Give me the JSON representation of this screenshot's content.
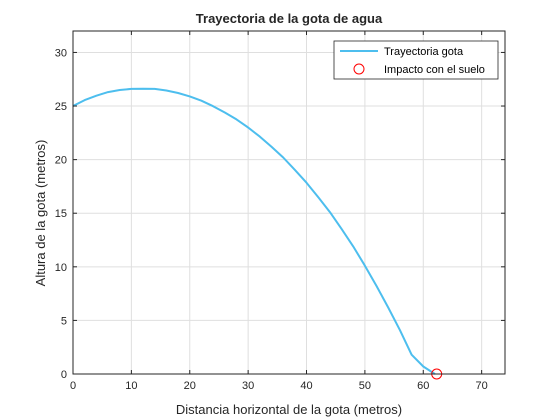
{
  "chart_data": {
    "type": "line",
    "title": "Trayectoria de la gota de agua",
    "xlabel": "Distancia horizontal de la gota (metros)",
    "ylabel": "Altura de la gota (metros)",
    "xlim": [
      0,
      74
    ],
    "ylim": [
      0,
      32
    ],
    "xticks": [
      0,
      10,
      20,
      30,
      40,
      50,
      60,
      70
    ],
    "yticks": [
      0,
      5,
      10,
      15,
      20,
      25,
      30
    ],
    "grid": true,
    "legend_position": "top-right",
    "series": [
      {
        "name": "Trayectoria gota",
        "type": "line",
        "color": "#4DBEEE",
        "x": [
          0,
          2,
          4,
          6,
          8,
          10,
          12,
          14,
          16,
          18,
          20,
          22,
          24,
          26,
          28,
          30,
          32,
          34,
          36,
          38,
          40,
          42,
          44,
          46,
          48,
          50,
          52,
          54,
          56,
          58,
          60,
          62
        ],
        "y": [
          25.0,
          25.55,
          25.96,
          26.3,
          26.5,
          26.6,
          26.62,
          26.6,
          26.45,
          26.22,
          25.9,
          25.5,
          24.98,
          24.4,
          23.75,
          23.0,
          22.15,
          21.2,
          20.2,
          19.05,
          17.85,
          16.5,
          15.1,
          13.55,
          11.9,
          10.1,
          8.2,
          6.2,
          4.1,
          1.8,
          0.7,
          0.0
        ]
      },
      {
        "name": "Impacto con el suelo",
        "type": "marker",
        "marker": "circle",
        "color": "#FF0000",
        "x": [
          62.3
        ],
        "y": [
          0.0
        ]
      }
    ]
  }
}
